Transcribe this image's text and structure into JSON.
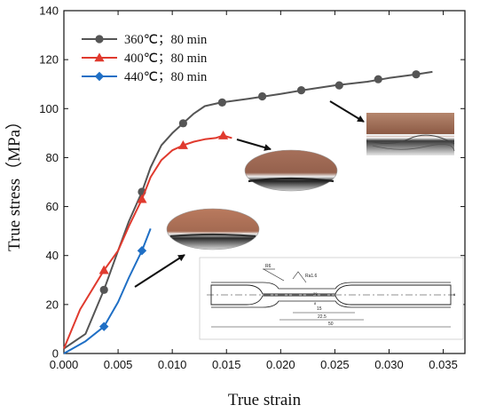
{
  "chart_data": {
    "type": "line",
    "xlabel": "True strain",
    "ylabel": "True stress（MPa）",
    "xlim": [
      0.0,
      0.037
    ],
    "ylim": [
      0,
      140
    ],
    "x_ticks": [
      "0.000",
      "0.005",
      "0.010",
      "0.015",
      "0.020",
      "0.025",
      "0.030",
      "0.035"
    ],
    "y_ticks": [
      "0",
      "20",
      "40",
      "60",
      "80",
      "100",
      "120",
      "140"
    ],
    "legend_position": "top-left",
    "series": [
      {
        "name": "360℃；80 min",
        "color": "#555555",
        "marker": "circle",
        "x": [
          0.0,
          0.002,
          0.0037,
          0.005,
          0.006,
          0.0072,
          0.008,
          0.009,
          0.01,
          0.011,
          0.012,
          0.013,
          0.0145,
          0.017,
          0.02,
          0.022,
          0.025,
          0.028,
          0.03,
          0.0325,
          0.034
        ],
        "y": [
          2,
          8,
          26,
          42,
          54,
          66,
          76,
          85,
          90,
          94,
          98,
          101,
          102.5,
          104,
          106,
          107.5,
          109.5,
          111,
          112.5,
          114,
          115
        ],
        "marker_x": [
          0.0037,
          0.0072,
          0.011,
          0.0146,
          0.0183,
          0.0219,
          0.0254,
          0.029,
          0.0325
        ],
        "marker_y": [
          26,
          66,
          94,
          102.5,
          105,
          107.5,
          109.5,
          112,
          114
        ]
      },
      {
        "name": "400℃；80 min",
        "color": "#e03a2e",
        "marker": "triangle",
        "x": [
          0.0,
          0.0015,
          0.0037,
          0.005,
          0.006,
          0.0072,
          0.008,
          0.009,
          0.01,
          0.011,
          0.012,
          0.013,
          0.014,
          0.0147,
          0.0155
        ],
        "y": [
          2,
          18,
          34,
          42,
          52,
          63,
          72,
          79,
          83,
          85,
          86.5,
          87.5,
          88,
          89,
          88
        ],
        "marker_x": [
          0.0037,
          0.0072,
          0.011,
          0.0147
        ],
        "marker_y": [
          34,
          63,
          85,
          89
        ]
      },
      {
        "name": "440℃；80 min",
        "color": "#1f6fc5",
        "marker": "diamond",
        "x": [
          0.0,
          0.002,
          0.0037,
          0.005,
          0.006,
          0.0072,
          0.008
        ],
        "y": [
          0,
          5,
          11,
          21,
          31,
          42,
          51
        ],
        "marker_x": [
          0.0037,
          0.0072
        ],
        "marker_y": [
          11,
          42
        ]
      }
    ]
  }
}
